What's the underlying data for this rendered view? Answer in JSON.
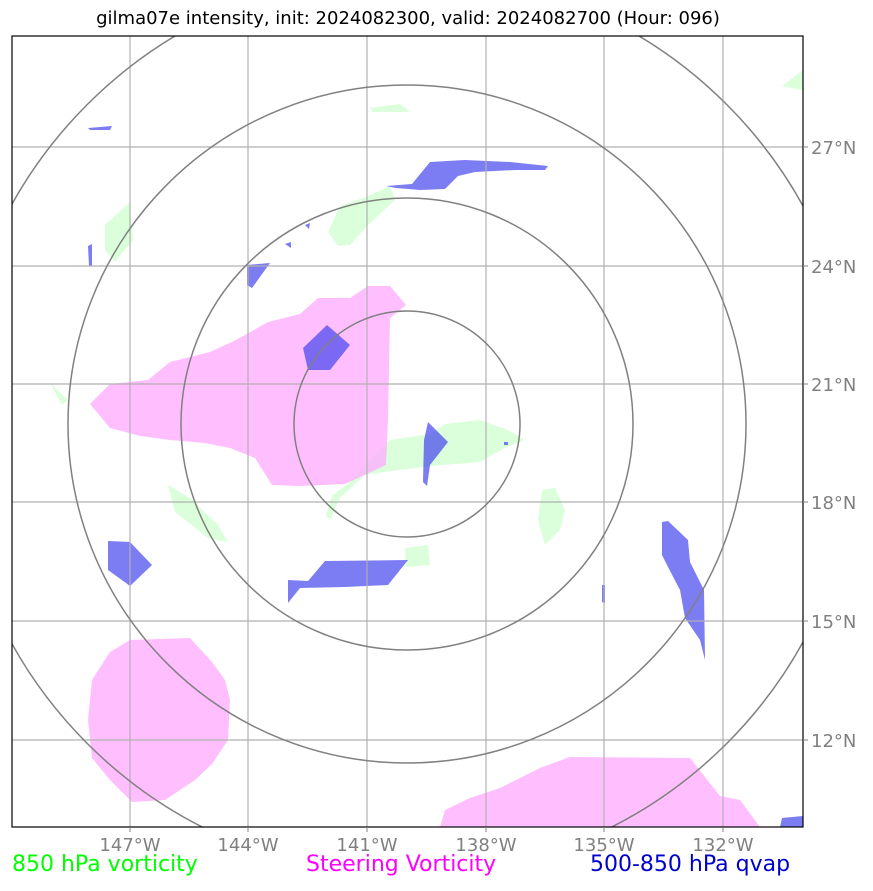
{
  "title": "gilma07e intensity, init: 2024082300, valid: 2024082700 (Hour: 096)",
  "map": {
    "lon_labels": [
      "147°W",
      "144°W",
      "141°W",
      "138°W",
      "135°W",
      "132°W"
    ],
    "lat_labels": [
      "27°N",
      "24°N",
      "21°N",
      "18°N",
      "15°N",
      "12°N"
    ],
    "lon_values": [
      -147,
      -144,
      -141,
      -138,
      -135,
      -132
    ],
    "lat_values": [
      27,
      24,
      21,
      18,
      15,
      12
    ],
    "storm_center": {
      "lon": -140.0,
      "lat": 19.9
    },
    "range_ring_count": 4,
    "grid": true,
    "colors": {
      "vorticity_850": "#ccffcc",
      "steering_vorticity": "#ffaaff",
      "qvap": "#4444ee",
      "grid": "#b0b0b0",
      "rings": "#808080"
    }
  },
  "legend": {
    "vorticity_850": {
      "label": "850 hPa vorticity",
      "color": "#00ff00"
    },
    "steering": {
      "label": "Steering Vorticity",
      "color": "#ff00ff"
    },
    "qvap": {
      "label": "500-850 hPa qvap",
      "color": "#0000cc"
    }
  }
}
